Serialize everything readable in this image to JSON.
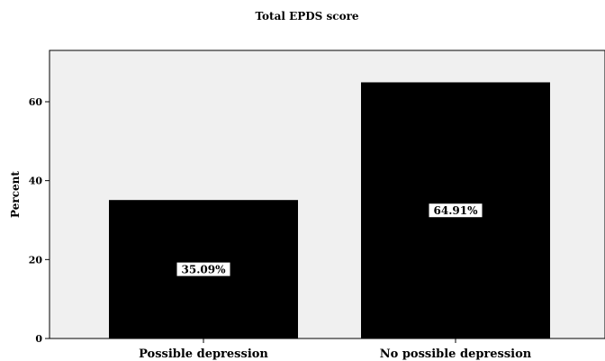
{
  "chart_data": {
    "type": "bar",
    "title": "Total EPDS score",
    "xlabel": "",
    "ylabel": "Percent",
    "categories": [
      "Possible depression",
      "No possible depression"
    ],
    "values": [
      35.09,
      64.91
    ],
    "data_labels": [
      "35.09%",
      "64.91%"
    ],
    "yticks": [
      0,
      20,
      40,
      60
    ],
    "ylim": [
      0,
      73
    ],
    "grid": false,
    "legend": "none",
    "colors": {
      "bar": "#000000",
      "plot_background": "#f0f0f0",
      "label_box": "#ffffff"
    }
  }
}
